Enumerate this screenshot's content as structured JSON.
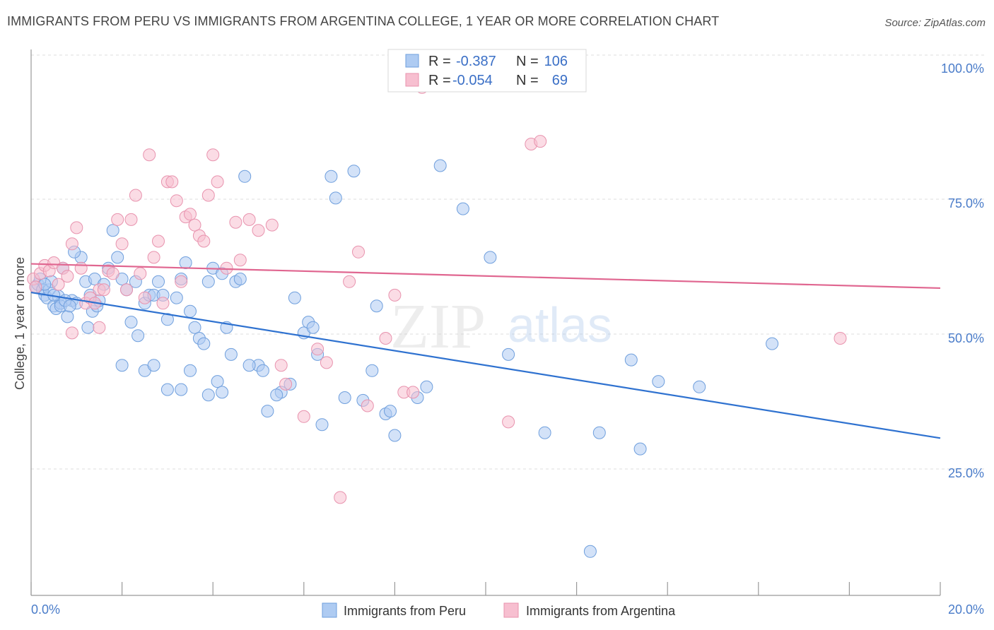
{
  "title": "IMMIGRANTS FROM PERU VS IMMIGRANTS FROM ARGENTINA COLLEGE, 1 YEAR OR MORE CORRELATION CHART",
  "source": "Source: ZipAtlas.com",
  "colors": {
    "peru_fill": "#aecbf2",
    "peru_stroke": "#6f9fdd",
    "peru_line": "#2f72d0",
    "argentina_fill": "#f7bfd0",
    "argentina_stroke": "#e893ae",
    "argentina_line": "#e06690",
    "tick_text": "#4a7cc9",
    "grid": "#dddddd"
  },
  "legend": {
    "r_label": "R =",
    "n_label": "N =",
    "rows": [
      {
        "series": "Immigrants from Peru",
        "r": "-0.387",
        "n": "106"
      },
      {
        "series": "Immigrants from Argentina",
        "r": "-0.054",
        "n": "69"
      }
    ]
  },
  "watermark": {
    "zip": "ZIP",
    "atlas": "atlas"
  },
  "chart_data": {
    "type": "scatter",
    "title": "IMMIGRANTS FROM PERU VS IMMIGRANTS FROM ARGENTINA COLLEGE, 1 YEAR OR MORE CORRELATION CHART",
    "xlabel": "",
    "ylabel": "College, 1 year or more",
    "xlim": [
      0,
      20
    ],
    "ylim": [
      0,
      105
    ],
    "x_tick_labels": [
      "0.0%",
      "20.0%"
    ],
    "y_ticks": [
      25,
      50,
      75,
      100
    ],
    "y_tick_labels": [
      "25.0%",
      "50.0%",
      "75.0%",
      "100.0%"
    ],
    "grid": true,
    "legend_position": "top-center",
    "series": [
      {
        "name": "Immigrants from Peru",
        "r": -0.387,
        "n": 106,
        "trend": {
          "x": [
            0,
            20
          ],
          "y": [
            58.5,
            31.5
          ]
        },
        "points": [
          [
            0.1,
            59.5
          ],
          [
            0.15,
            60
          ],
          [
            0.2,
            61
          ],
          [
            0.25,
            59
          ],
          [
            0.3,
            58
          ],
          [
            0.35,
            57.5
          ],
          [
            0.4,
            59
          ],
          [
            0.45,
            60.5
          ],
          [
            0.5,
            56
          ],
          [
            0.55,
            55.5
          ],
          [
            0.6,
            57.8
          ],
          [
            0.65,
            56.5
          ],
          [
            0.7,
            63
          ],
          [
            0.8,
            54
          ],
          [
            0.9,
            57
          ],
          [
            1.0,
            56.5
          ],
          [
            1.1,
            65
          ],
          [
            1.2,
            60.5
          ],
          [
            1.3,
            58
          ],
          [
            1.35,
            55
          ],
          [
            1.4,
            61
          ],
          [
            1.45,
            56
          ],
          [
            1.5,
            57
          ],
          [
            1.6,
            60
          ],
          [
            1.7,
            63
          ],
          [
            1.8,
            70
          ],
          [
            1.9,
            65
          ],
          [
            2.0,
            61
          ],
          [
            2.1,
            59
          ],
          [
            2.2,
            53
          ],
          [
            2.3,
            60.5
          ],
          [
            2.35,
            50.5
          ],
          [
            2.5,
            56.5
          ],
          [
            2.6,
            58
          ],
          [
            2.7,
            58
          ],
          [
            2.8,
            60.5
          ],
          [
            2.9,
            58
          ],
          [
            3.0,
            53.5
          ],
          [
            3.2,
            57.5
          ],
          [
            3.3,
            61
          ],
          [
            3.4,
            64
          ],
          [
            3.5,
            55
          ],
          [
            3.6,
            52
          ],
          [
            3.7,
            50
          ],
          [
            3.8,
            49
          ],
          [
            3.9,
            60.5
          ],
          [
            4.0,
            63
          ],
          [
            4.2,
            62
          ],
          [
            4.3,
            52
          ],
          [
            4.4,
            47
          ],
          [
            4.5,
            60.5
          ],
          [
            4.6,
            61
          ],
          [
            4.7,
            80
          ],
          [
            5.0,
            45
          ],
          [
            5.2,
            36.5
          ],
          [
            5.5,
            40
          ],
          [
            5.7,
            41.5
          ],
          [
            5.8,
            57.5
          ],
          [
            6.0,
            51
          ],
          [
            6.1,
            53
          ],
          [
            6.2,
            52
          ],
          [
            6.3,
            47
          ],
          [
            6.4,
            34
          ],
          [
            6.6,
            80
          ],
          [
            6.7,
            76
          ],
          [
            7.1,
            81
          ],
          [
            7.6,
            56
          ],
          [
            7.8,
            36
          ],
          [
            8.0,
            32
          ],
          [
            8.5,
            39
          ],
          [
            8.7,
            41
          ],
          [
            9.0,
            82
          ],
          [
            9.5,
            74
          ],
          [
            10.1,
            65
          ],
          [
            10.5,
            47
          ],
          [
            11.3,
            32.5
          ],
          [
            12.3,
            10.5
          ],
          [
            12.5,
            32.5
          ],
          [
            13.2,
            46
          ],
          [
            13.4,
            29.5
          ],
          [
            13.8,
            42
          ],
          [
            14.7,
            41
          ],
          [
            16.3,
            49
          ],
          [
            2.0,
            45
          ],
          [
            2.5,
            44
          ],
          [
            2.7,
            45
          ],
          [
            3.0,
            40.5
          ],
          [
            3.3,
            40.5
          ],
          [
            3.5,
            44
          ],
          [
            3.9,
            39.5
          ],
          [
            4.1,
            42
          ],
          [
            4.2,
            40
          ],
          [
            4.8,
            45
          ],
          [
            5.1,
            44
          ],
          [
            5.4,
            39.5
          ],
          [
            6.9,
            39
          ],
          [
            7.3,
            38.5
          ],
          [
            7.5,
            44
          ],
          [
            7.9,
            36.5
          ],
          [
            1.25,
            52
          ],
          [
            0.95,
            66
          ],
          [
            0.3,
            60
          ],
          [
            0.5,
            58
          ],
          [
            0.65,
            56
          ],
          [
            0.75,
            57
          ],
          [
            0.85,
            56
          ]
        ]
      },
      {
        "name": "Immigrants from Argentina",
        "r": -0.054,
        "n": 69,
        "trend": {
          "x": [
            0,
            20
          ],
          "y": [
            63.8,
            59.3
          ]
        },
        "points": [
          [
            0.05,
            61
          ],
          [
            0.1,
            59.5
          ],
          [
            0.2,
            62
          ],
          [
            0.3,
            63.5
          ],
          [
            0.4,
            62.5
          ],
          [
            0.5,
            64
          ],
          [
            0.6,
            60
          ],
          [
            0.7,
            63
          ],
          [
            0.8,
            61.5
          ],
          [
            0.9,
            67.5
          ],
          [
            1.0,
            70.5
          ],
          [
            1.1,
            63
          ],
          [
            1.2,
            56.5
          ],
          [
            1.3,
            57.5
          ],
          [
            1.4,
            56.5
          ],
          [
            1.5,
            59
          ],
          [
            1.6,
            59
          ],
          [
            1.7,
            62.5
          ],
          [
            1.8,
            62
          ],
          [
            1.9,
            72
          ],
          [
            2.0,
            67.5
          ],
          [
            2.2,
            72
          ],
          [
            2.3,
            76.5
          ],
          [
            2.4,
            62
          ],
          [
            2.5,
            57.5
          ],
          [
            2.6,
            84
          ],
          [
            2.7,
            65
          ],
          [
            2.8,
            68
          ],
          [
            2.9,
            56.5
          ],
          [
            3.0,
            79
          ],
          [
            3.1,
            79
          ],
          [
            3.2,
            75.5
          ],
          [
            3.3,
            60.5
          ],
          [
            3.4,
            72.5
          ],
          [
            3.5,
            73
          ],
          [
            3.6,
            71
          ],
          [
            3.7,
            69
          ],
          [
            3.8,
            68
          ],
          [
            3.9,
            76.5
          ],
          [
            4.0,
            84
          ],
          [
            4.1,
            79
          ],
          [
            4.3,
            63
          ],
          [
            4.5,
            71.5
          ],
          [
            4.6,
            64.5
          ],
          [
            4.8,
            72
          ],
          [
            5.0,
            70
          ],
          [
            5.3,
            71
          ],
          [
            5.5,
            45
          ],
          [
            5.6,
            41.5
          ],
          [
            6.0,
            35.5
          ],
          [
            6.3,
            48
          ],
          [
            6.5,
            45.5
          ],
          [
            6.8,
            20.5
          ],
          [
            7.0,
            60.5
          ],
          [
            7.2,
            66
          ],
          [
            7.4,
            37.5
          ],
          [
            7.8,
            50
          ],
          [
            8.0,
            58
          ],
          [
            8.2,
            40
          ],
          [
            8.4,
            40
          ],
          [
            8.6,
            96.5
          ],
          [
            9.0,
            99.5
          ],
          [
            10.5,
            34.5
          ],
          [
            11.0,
            86
          ],
          [
            11.2,
            86.5
          ],
          [
            17.8,
            50
          ],
          [
            1.5,
            52
          ],
          [
            0.9,
            51
          ],
          [
            2.1,
            59
          ]
        ]
      }
    ]
  }
}
